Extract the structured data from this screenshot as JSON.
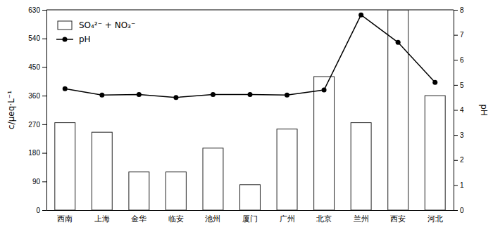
{
  "chart_data": {
    "type": "bar",
    "categories": [
      "西南",
      "上海",
      "金华",
      "临安",
      "池州",
      "厦门",
      "广州",
      "北京",
      "兰州",
      "西安",
      "河北"
    ],
    "series": [
      {
        "name": "SO₄²⁻ + NO₃⁻",
        "type": "bar",
        "color": "#ffffff",
        "values": [
          275,
          245,
          120,
          120,
          195,
          80,
          255,
          420,
          275,
          630,
          360
        ]
      },
      {
        "name": "pH",
        "type": "line",
        "axis": "y2",
        "color": "#000000",
        "marker": "circle",
        "line_style": "solid",
        "values": [
          4.85,
          4.6,
          4.62,
          4.5,
          4.62,
          4.62,
          4.6,
          4.8,
          7.8,
          6.7,
          5.1
        ]
      }
    ],
    "ylabel": "c/μeq·L⁻¹",
    "y2label": "pH",
    "ylim": [
      0,
      630
    ],
    "yticks": [
      0,
      90,
      180,
      270,
      360,
      450,
      540,
      630
    ],
    "y2lim": [
      0,
      8
    ],
    "y2ticks": [
      0,
      1,
      2,
      3,
      4,
      5,
      6,
      7,
      8
    ],
    "grid": false,
    "legend": "upper left"
  }
}
